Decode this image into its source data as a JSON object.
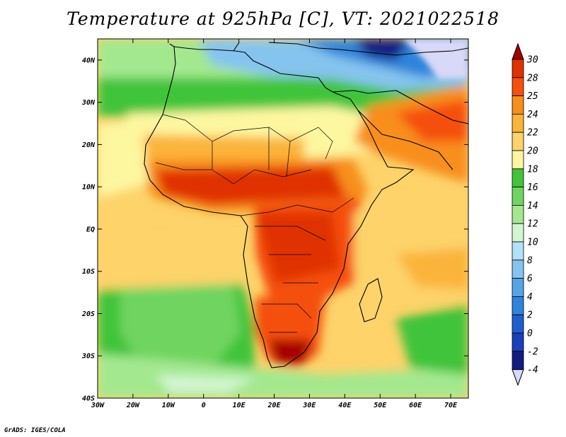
{
  "title": "Temperature at 925hPa [C], VT: 2021022518",
  "footer": "GrADS: IGES/COLA",
  "map": {
    "projection": "latlon",
    "lon_range": [
      -30,
      75
    ],
    "lat_range": [
      -40,
      45
    ],
    "variable": "Temperature at 925hPa",
    "units": "C",
    "valid_time": "2021022518",
    "lat_ticks": [
      {
        "value": 40,
        "label": "40N"
      },
      {
        "value": 30,
        "label": "30N"
      },
      {
        "value": 20,
        "label": "20N"
      },
      {
        "value": 10,
        "label": "10N"
      },
      {
        "value": 0,
        "label": "EQ"
      },
      {
        "value": -10,
        "label": "10S"
      },
      {
        "value": -20,
        "label": "20S"
      },
      {
        "value": -30,
        "label": "30S"
      },
      {
        "value": -40,
        "label": "40S"
      }
    ],
    "lon_ticks": [
      {
        "value": -30,
        "label": "30W"
      },
      {
        "value": -20,
        "label": "20W"
      },
      {
        "value": -10,
        "label": "10W"
      },
      {
        "value": 0,
        "label": "0"
      },
      {
        "value": 10,
        "label": "10E"
      },
      {
        "value": 20,
        "label": "20E"
      },
      {
        "value": 30,
        "label": "30E"
      },
      {
        "value": 40,
        "label": "40E"
      },
      {
        "value": 50,
        "label": "50E"
      },
      {
        "value": 60,
        "label": "60E"
      },
      {
        "value": 70,
        "label": "70E"
      }
    ]
  },
  "colorbar": {
    "levels": [
      "30",
      "28",
      "25",
      "24",
      "22",
      "20",
      "18",
      "16",
      "14",
      "12",
      "10",
      "8",
      "6",
      "4",
      "2",
      "0",
      "-2",
      "-4"
    ],
    "colors": [
      "#a50000",
      "#e03100",
      "#f5500d",
      "#f88e1b",
      "#fbb43a",
      "#fdd36a",
      "#fdf7a0",
      "#41c43a",
      "#6fd460",
      "#a3e88f",
      "#d2f6d2",
      "#b4e0f8",
      "#85c4ee",
      "#55a4e6",
      "#2f84dc",
      "#1d5fcf",
      "#1840b8",
      "#141c82",
      "#d8d8f8"
    ]
  }
}
